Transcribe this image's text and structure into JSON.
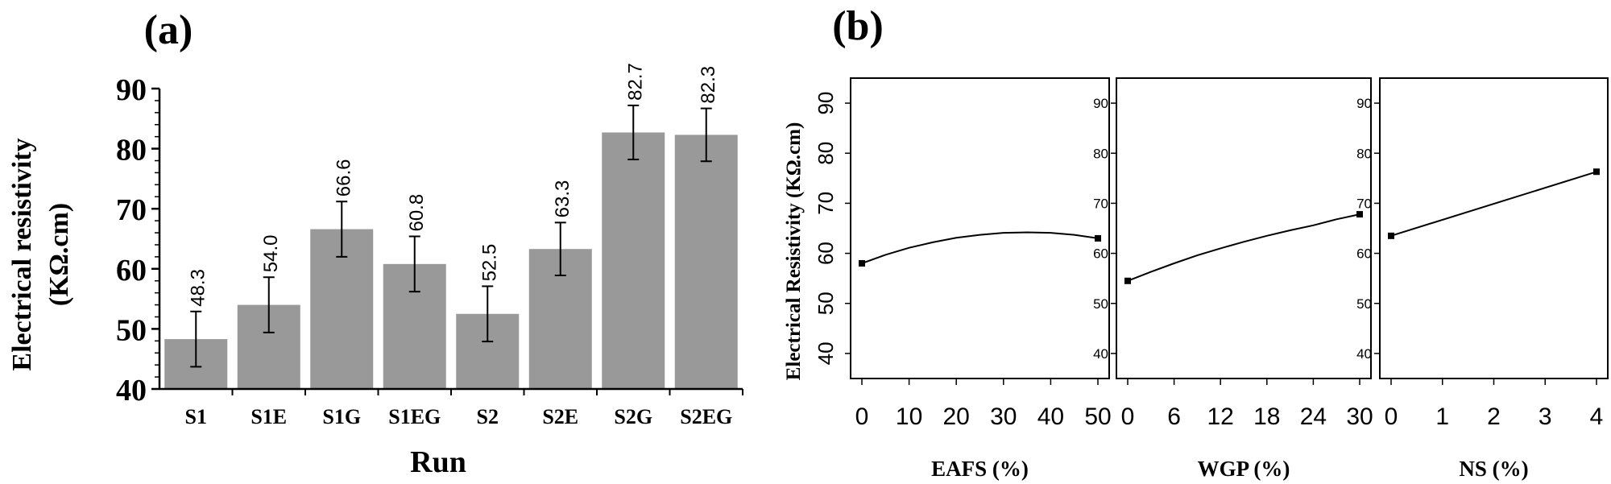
{
  "chart_data": [
    {
      "panel_label": "(a)",
      "type": "bar",
      "title": "",
      "xlabel": "Run",
      "ylabel": "Electrical resistivity",
      "ylabel_unit": "(KΩ.cm)",
      "categories": [
        "S1",
        "S1E",
        "S1G",
        "S1EG",
        "S2",
        "S2E",
        "S2G",
        "S2EG"
      ],
      "values": [
        48.3,
        54.0,
        66.6,
        60.8,
        52.5,
        63.3,
        82.7,
        82.3
      ],
      "value_labels": [
        "48.3",
        "54.0",
        "66.6",
        "60.8",
        "52.5",
        "63.3",
        "82.7",
        "82.3"
      ],
      "error": [
        4.6,
        4.6,
        4.6,
        4.6,
        4.6,
        4.4,
        4.5,
        4.4
      ],
      "ylim": [
        40,
        90
      ],
      "yticks": [
        40,
        50,
        60,
        70,
        80,
        90
      ],
      "ytick_labels": [
        "40",
        "50",
        "60",
        "70",
        "80",
        "90"
      ],
      "bar_color": "#999999",
      "grid": false
    },
    {
      "panel_label": "(b)",
      "type": "line",
      "title": "",
      "ylabel": "Electrical Resistivity (KΩ.cm)",
      "ylim": [
        35,
        95
      ],
      "yticks": [
        40,
        50,
        60,
        70,
        80,
        90
      ],
      "ytick_labels": [
        "40",
        "50",
        "60",
        "70",
        "80",
        "90"
      ],
      "grid": false,
      "panels": [
        {
          "xlabel": "EAFS (%)",
          "xlim": [
            0,
            50
          ],
          "xticks": [
            0,
            10,
            20,
            30,
            40,
            50
          ],
          "xtick_labels": [
            "0",
            "10",
            "20",
            "30",
            "40",
            "50"
          ],
          "points": [
            {
              "x": 0,
              "y": 58.0
            },
            {
              "x": 50,
              "y": 63.0
            }
          ],
          "curve": [
            [
              0,
              58.0
            ],
            [
              5,
              59.7
            ],
            [
              10,
              61.1
            ],
            [
              15,
              62.2
            ],
            [
              20,
              63.1
            ],
            [
              25,
              63.7
            ],
            [
              30,
              64.1
            ],
            [
              35,
              64.2
            ],
            [
              40,
              64.1
            ],
            [
              45,
              63.7
            ],
            [
              50,
              63.0
            ]
          ]
        },
        {
          "xlabel": "WGP (%)",
          "xlim": [
            0,
            30
          ],
          "xticks": [
            0,
            6,
            12,
            18,
            24,
            30
          ],
          "xtick_labels": [
            "0",
            "6",
            "12",
            "18",
            "24",
            "30"
          ],
          "points": [
            {
              "x": 0,
              "y": 54.5
            },
            {
              "x": 30,
              "y": 67.8
            }
          ],
          "curve": [
            [
              0,
              54.5
            ],
            [
              3,
              56.3
            ],
            [
              6,
              58.0
            ],
            [
              9,
              59.6
            ],
            [
              12,
              61.0
            ],
            [
              15,
              62.3
            ],
            [
              18,
              63.5
            ],
            [
              21,
              64.6
            ],
            [
              24,
              65.6
            ],
            [
              27,
              66.8
            ],
            [
              30,
              67.8
            ]
          ]
        },
        {
          "xlabel": "NS (%)",
          "xlim": [
            0,
            4
          ],
          "xticks": [
            0,
            1,
            2,
            3,
            4
          ],
          "xtick_labels": [
            "0",
            "1",
            "2",
            "3",
            "4"
          ],
          "points": [
            {
              "x": 0,
              "y": 63.5
            },
            {
              "x": 4,
              "y": 76.3
            }
          ],
          "curve": [
            [
              0,
              63.5
            ],
            [
              4,
              76.3
            ]
          ]
        }
      ]
    }
  ]
}
